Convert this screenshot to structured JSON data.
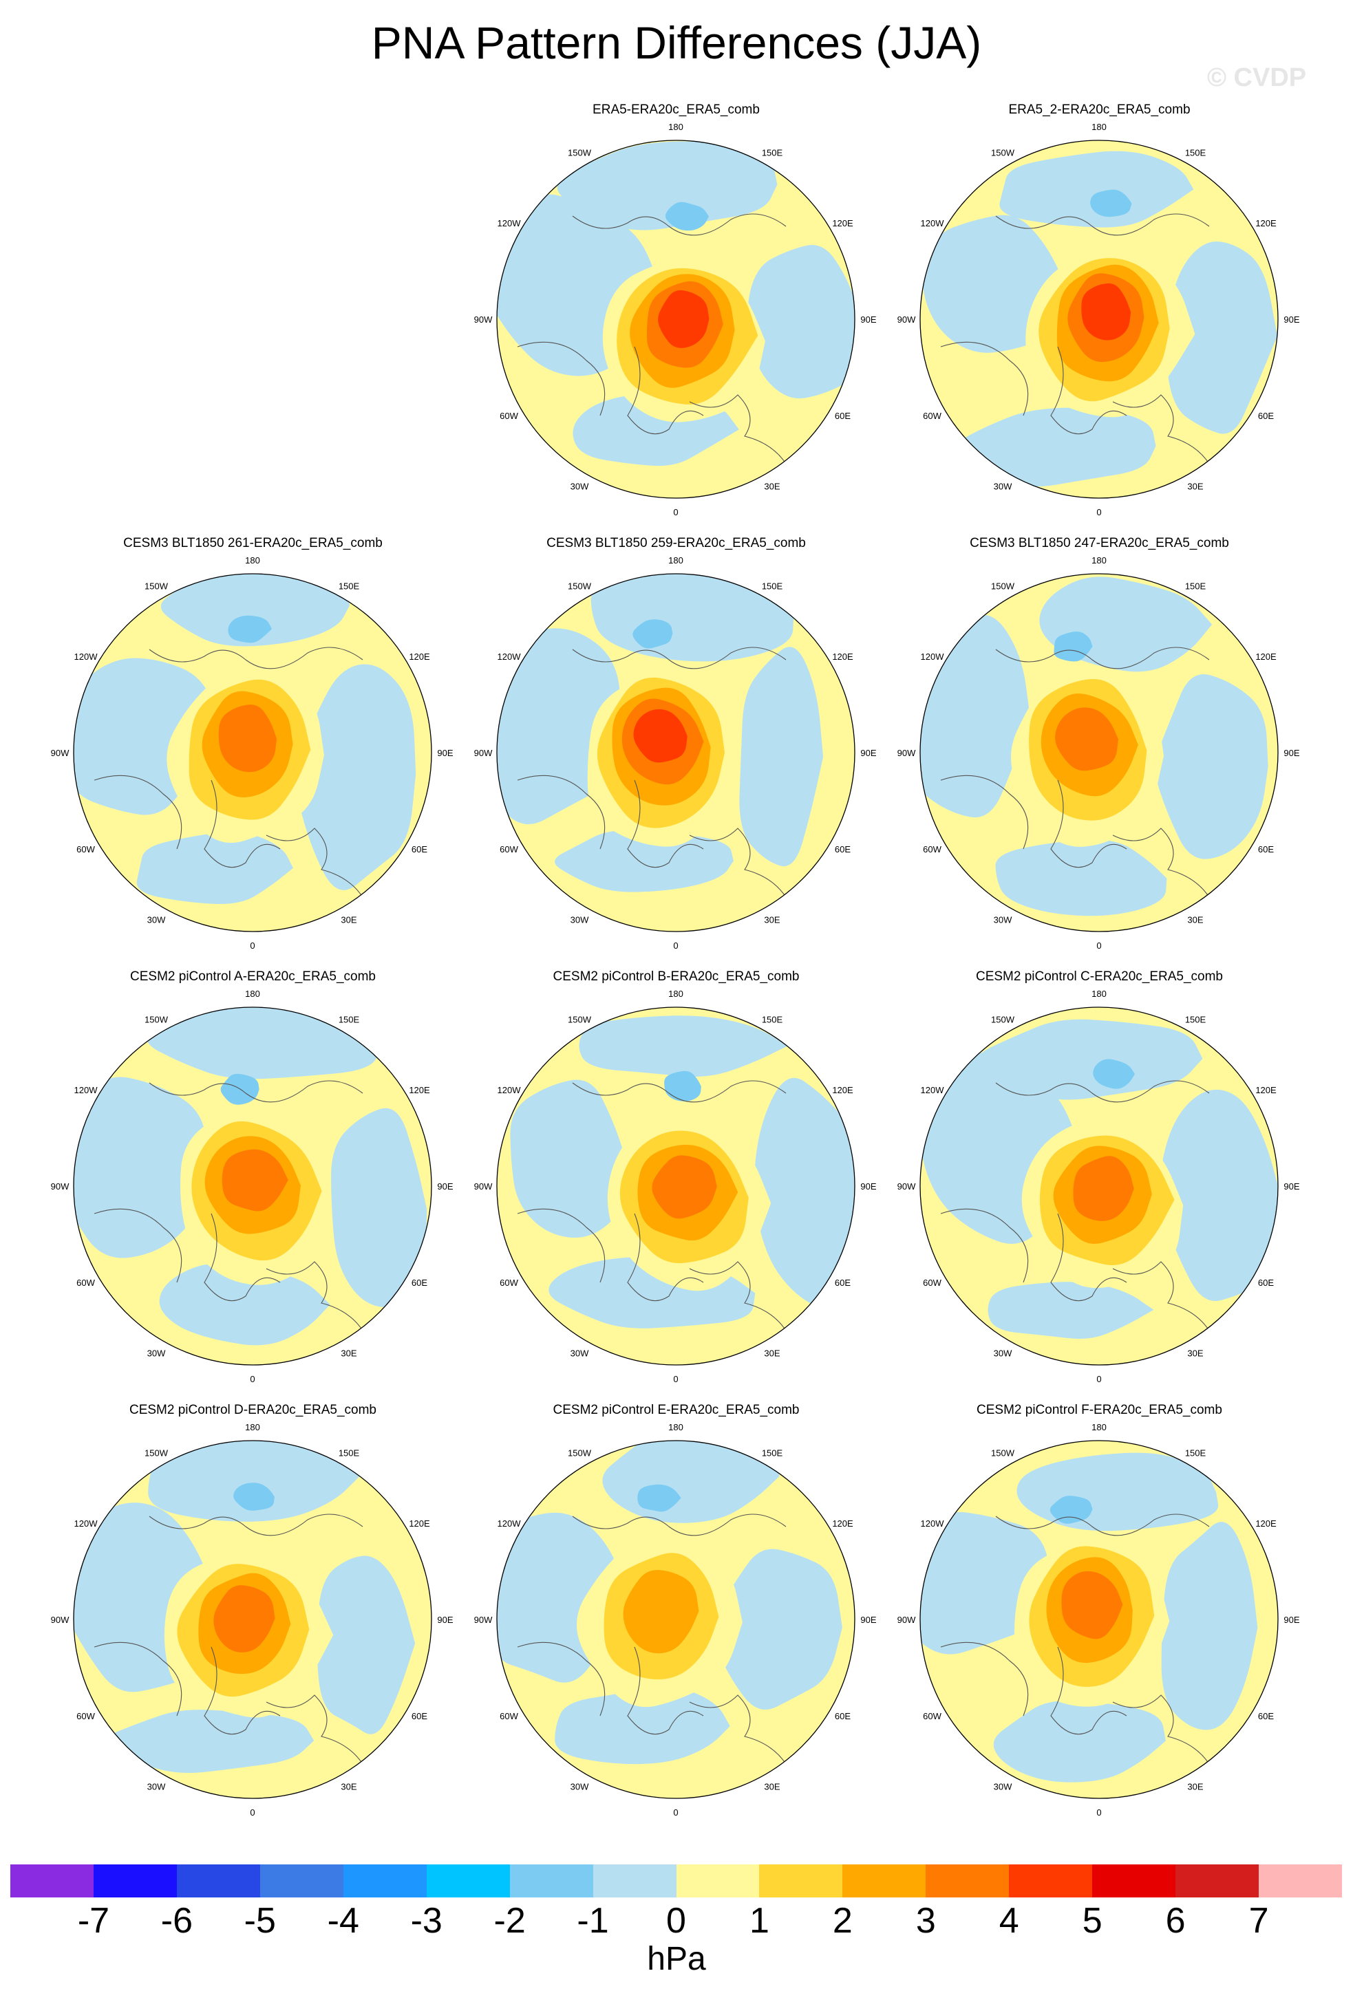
{
  "title": "PNA Pattern Differences (JJA)",
  "watermark": "© CVDP",
  "units": "hPa",
  "longitude_labels": [
    "180",
    "150E",
    "120E",
    "90E",
    "60E",
    "30E",
    "0",
    "30W",
    "60W",
    "90W",
    "120W",
    "150W"
  ],
  "colorbar": {
    "colors": [
      "#8a2be2",
      "#1a10ff",
      "#2848e6",
      "#3c7ae6",
      "#1e96ff",
      "#00c4ff",
      "#7ccbf2",
      "#b6e0f2",
      "#fff99c",
      "#ffd633",
      "#ffa800",
      "#ff7a00",
      "#ff3a00",
      "#e60000",
      "#d41e1e",
      "#ffb6b6"
    ],
    "labels": [
      "-7",
      "-6",
      "-5",
      "-4",
      "-3",
      "-2",
      "-1",
      "0",
      "1",
      "2",
      "3",
      "4",
      "5",
      "6",
      "7"
    ]
  },
  "panels": [
    {
      "title": "ERA5-ERA20c_ERA5_comb",
      "row": 0,
      "col": 1,
      "peak": 5
    },
    {
      "title": "ERA5_2-ERA20c_ERA5_comb",
      "row": 0,
      "col": 2,
      "peak": 5
    },
    {
      "title": "CESM3 BLT1850 261-ERA20c_ERA5_comb",
      "row": 1,
      "col": 0,
      "peak": 4
    },
    {
      "title": "CESM3 BLT1850 259-ERA20c_ERA5_comb",
      "row": 1,
      "col": 1,
      "peak": 5
    },
    {
      "title": "CESM3 BLT1850 247-ERA20c_ERA5_comb",
      "row": 1,
      "col": 2,
      "peak": 4
    },
    {
      "title": "CESM2 piControl A-ERA20c_ERA5_comb",
      "row": 2,
      "col": 0,
      "peak": 4
    },
    {
      "title": "CESM2 piControl B-ERA20c_ERA5_comb",
      "row": 2,
      "col": 1,
      "peak": 4
    },
    {
      "title": "CESM2 piControl C-ERA20c_ERA5_comb",
      "row": 2,
      "col": 2,
      "peak": 4
    },
    {
      "title": "CESM2 piControl D-ERA20c_ERA5_comb",
      "row": 3,
      "col": 0,
      "peak": 4
    },
    {
      "title": "CESM2 piControl E-ERA20c_ERA5_comb",
      "row": 3,
      "col": 1,
      "peak": 3
    },
    {
      "title": "CESM2 piControl F-ERA20c_ERA5_comb",
      "row": 3,
      "col": 2,
      "peak": 4
    }
  ]
}
